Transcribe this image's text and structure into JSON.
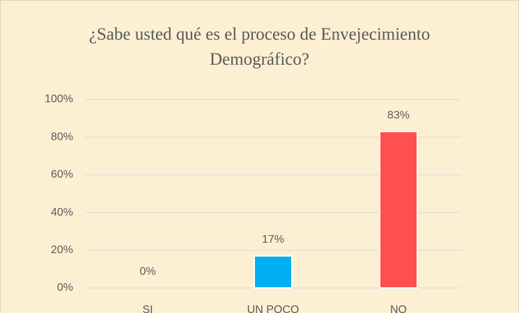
{
  "chart_data": {
    "type": "bar",
    "title": "¿Sabe usted qué es el proceso de Envejecimiento Demográfico?",
    "categories": [
      "SI",
      "UN POCO",
      "NO"
    ],
    "values": [
      0,
      17,
      83
    ],
    "value_labels": [
      "0%",
      "17%",
      "83%"
    ],
    "colors": [
      "#a5a5a5",
      "#00b0f0",
      "#ff5050"
    ],
    "ylim": [
      0,
      100
    ],
    "yticks": [
      {
        "value": 0,
        "label": "0%"
      },
      {
        "value": 20,
        "label": "20%"
      },
      {
        "value": 40,
        "label": "40%"
      },
      {
        "value": 60,
        "label": "60%"
      },
      {
        "value": 80,
        "label": "80%"
      },
      {
        "value": 100,
        "label": "100%"
      }
    ],
    "grid": true
  }
}
